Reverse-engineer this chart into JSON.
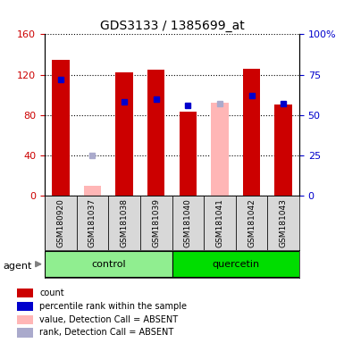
{
  "title": "GDS3133 / 1385699_at",
  "samples": [
    "GSM180920",
    "GSM181037",
    "GSM181038",
    "GSM181039",
    "GSM181040",
    "GSM181041",
    "GSM181042",
    "GSM181043"
  ],
  "count_values": [
    135,
    null,
    122,
    125,
    83,
    null,
    126,
    90
  ],
  "count_absent": [
    null,
    10,
    null,
    null,
    null,
    92,
    null,
    null
  ],
  "rank_values": [
    72,
    null,
    58,
    60,
    56,
    null,
    62,
    57
  ],
  "rank_absent": [
    null,
    25,
    null,
    null,
    null,
    57,
    null,
    null
  ],
  "groups": [
    {
      "label": "control",
      "start": 0,
      "end": 4,
      "color": "#90ee90"
    },
    {
      "label": "quercetin",
      "start": 4,
      "end": 8,
      "color": "#00dd00"
    }
  ],
  "left_ylim": [
    0,
    160
  ],
  "right_ylim": [
    0,
    100
  ],
  "left_yticks": [
    0,
    40,
    80,
    120,
    160
  ],
  "right_yticks": [
    0,
    25,
    50,
    75,
    100
  ],
  "right_yticklabels": [
    "0",
    "25",
    "50",
    "75",
    "100%"
  ],
  "left_yticklabels": [
    "0",
    "40",
    "80",
    "120",
    "160"
  ],
  "bar_color_present": "#cc0000",
  "bar_color_absent": "#ffb6b6",
  "rank_color_present": "#0000cc",
  "rank_color_absent": "#aaaacc",
  "bar_width": 0.55,
  "legend_items": [
    {
      "label": "count",
      "color": "#cc0000"
    },
    {
      "label": "percentile rank within the sample",
      "color": "#0000cc"
    },
    {
      "label": "value, Detection Call = ABSENT",
      "color": "#ffb6b6"
    },
    {
      "label": "rank, Detection Call = ABSENT",
      "color": "#aaaacc"
    }
  ]
}
